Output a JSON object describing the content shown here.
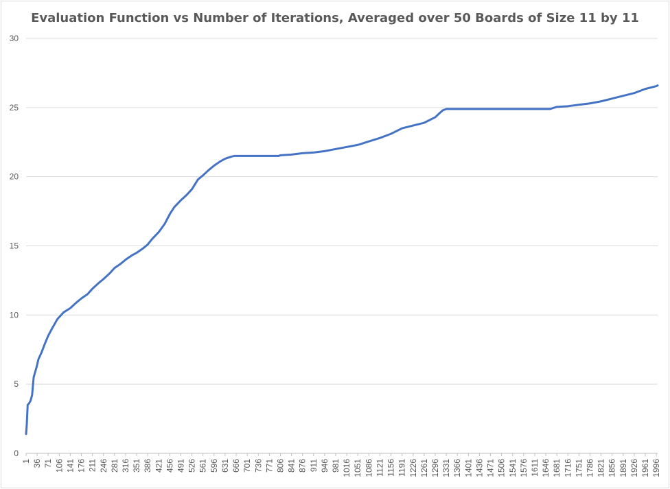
{
  "chart_data": {
    "type": "line",
    "title": "Evaluation Function vs Number of Iterations, Averaged over 50 Boards of Size 11 by 11",
    "xlabel": "",
    "ylabel": "",
    "ylim": [
      0,
      30
    ],
    "yticks": [
      "0",
      "5",
      "10",
      "15",
      "20",
      "25",
      "30"
    ],
    "xlim": [
      1,
      2000
    ],
    "xticks": [
      "1",
      "36",
      "71",
      "106",
      "141",
      "176",
      "211",
      "246",
      "281",
      "316",
      "351",
      "386",
      "421",
      "456",
      "491",
      "526",
      "561",
      "596",
      "631",
      "666",
      "701",
      "736",
      "771",
      "806",
      "841",
      "876",
      "911",
      "946",
      "981",
      "1016",
      "1051",
      "1086",
      "1121",
      "1156",
      "1191",
      "1226",
      "1261",
      "1296",
      "1331",
      "1366",
      "1401",
      "1436",
      "1471",
      "1506",
      "1541",
      "1576",
      "1611",
      "1646",
      "1681",
      "1716",
      "1751",
      "1786",
      "1821",
      "1856",
      "1891",
      "1926",
      "1961",
      "1996"
    ],
    "grid": true,
    "legend": "none",
    "color": "#4472c4",
    "series": [
      {
        "x": [
          1,
          3,
          6,
          10,
          15,
          20,
          25,
          30,
          35,
          40,
          50,
          60,
          71,
          85,
          100,
          120,
          141,
          160,
          176,
          195,
          211,
          230,
          246,
          265,
          281,
          300,
          316,
          335,
          351,
          370,
          386,
          400,
          421,
          440,
          456,
          470,
          491,
          510,
          526,
          545,
          561,
          580,
          596,
          615,
          631,
          650,
          660,
          666,
          700,
          750,
          800,
          806,
          841,
          876,
          911,
          946,
          981,
          1016,
          1051,
          1086,
          1121,
          1156,
          1191,
          1226,
          1261,
          1296,
          1310,
          1320,
          1331,
          1400,
          1500,
          1600,
          1660,
          1681,
          1716,
          1751,
          1786,
          1821,
          1856,
          1891,
          1926,
          1961,
          1996,
          2000
        ],
        "y": [
          1.4,
          2.0,
          3.5,
          3.6,
          3.8,
          4.2,
          5.5,
          5.9,
          6.3,
          6.8,
          7.3,
          7.9,
          8.5,
          9.1,
          9.7,
          10.2,
          10.5,
          10.9,
          11.2,
          11.5,
          11.9,
          12.3,
          12.6,
          13.0,
          13.4,
          13.7,
          14.0,
          14.3,
          14.5,
          14.8,
          15.1,
          15.5,
          16.0,
          16.6,
          17.3,
          17.8,
          18.3,
          18.7,
          19.1,
          19.8,
          20.1,
          20.5,
          20.8,
          21.1,
          21.3,
          21.45,
          21.5,
          21.5,
          21.5,
          21.5,
          21.5,
          21.55,
          21.6,
          21.7,
          21.75,
          21.85,
          22.0,
          22.15,
          22.3,
          22.55,
          22.8,
          23.1,
          23.5,
          23.7,
          23.9,
          24.3,
          24.6,
          24.8,
          24.9,
          24.9,
          24.9,
          24.9,
          24.9,
          25.05,
          25.1,
          25.2,
          25.3,
          25.45,
          25.65,
          25.85,
          26.05,
          26.35,
          26.55,
          26.6
        ]
      }
    ]
  }
}
